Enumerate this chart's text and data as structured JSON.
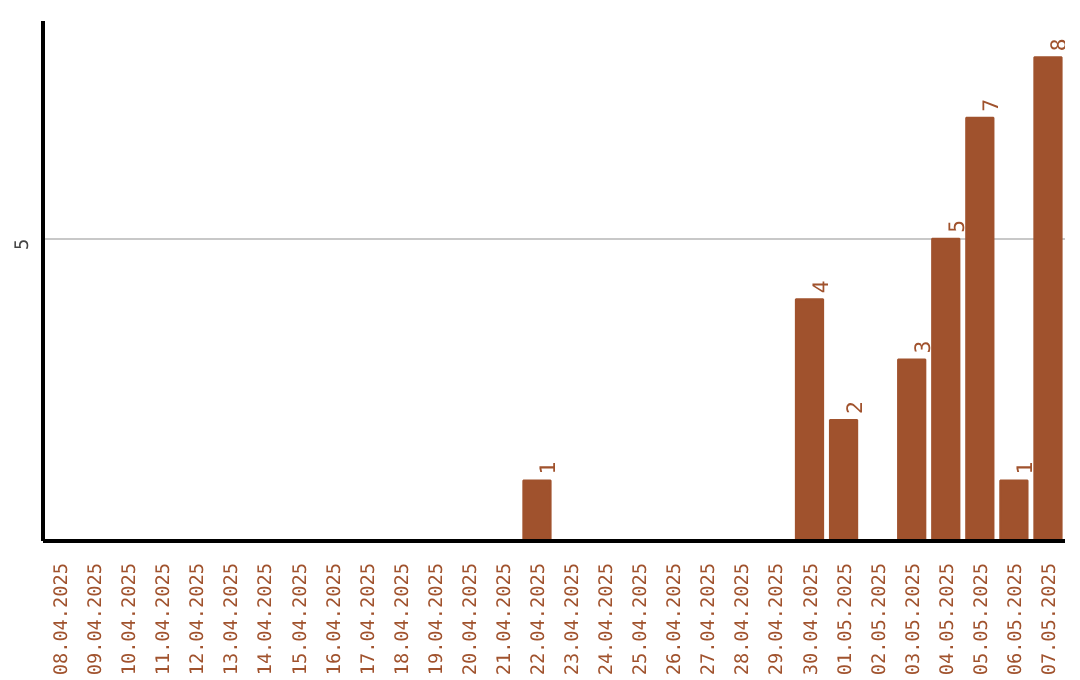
{
  "chart_data": {
    "type": "bar",
    "categories": [
      "08.04.2025",
      "09.04.2025",
      "10.04.2025",
      "11.04.2025",
      "12.04.2025",
      "13.04.2025",
      "14.04.2025",
      "15.04.2025",
      "16.04.2025",
      "17.04.2025",
      "18.04.2025",
      "19.04.2025",
      "20.04.2025",
      "21.04.2025",
      "22.04.2025",
      "23.04.2025",
      "24.04.2025",
      "25.04.2025",
      "26.04.2025",
      "27.04.2025",
      "28.04.2025",
      "29.04.2025",
      "30.04.2025",
      "01.05.2025",
      "02.05.2025",
      "03.05.2025",
      "04.05.2025",
      "05.05.2025",
      "06.05.2025",
      "07.05.2025"
    ],
    "values": [
      null,
      null,
      null,
      null,
      null,
      null,
      null,
      null,
      null,
      null,
      null,
      null,
      null,
      null,
      1,
      null,
      null,
      null,
      null,
      null,
      null,
      null,
      4,
      2,
      null,
      3,
      5,
      7,
      1,
      8
    ],
    "color": "#a0522d",
    "ylim": [
      0,
      8.6
    ],
    "yticks": [
      5
    ],
    "grid": "y",
    "data_labels": true
  }
}
